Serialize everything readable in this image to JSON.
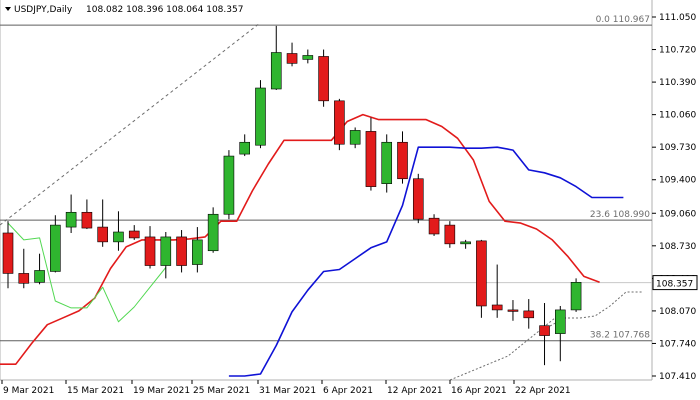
{
  "header": {
    "symbol_text": "USDJPY,Daily",
    "ohlc_text": "108.082 108.396 108.064 108.357"
  },
  "current_price_text": "108.357",
  "colors": {
    "bull": "#2fb52f",
    "bear": "#e21b1b",
    "red_line": "#e21b1b",
    "blue_line": "#0f12d6",
    "green_line": "#52d852",
    "grid_line": "#b2b2b2",
    "level_line": "#5e5e5e",
    "dashed": "#6d6d6d"
  },
  "chart_data": {
    "type": "candlestick",
    "y_axis_range": [
      107.41,
      111.05
    ],
    "y_ticks": [
      {
        "value": 111.05,
        "label": "111.050"
      },
      {
        "value": 110.72,
        "label": "110.720"
      },
      {
        "value": 110.39,
        "label": "110.390"
      },
      {
        "value": 110.06,
        "label": "110.060"
      },
      {
        "value": 109.73,
        "label": "109.730"
      },
      {
        "value": 109.4,
        "label": "109.400"
      },
      {
        "value": 109.06,
        "label": "109.060"
      },
      {
        "value": 108.73,
        "label": "108.730"
      },
      {
        "value": 108.4,
        "label": "108.400"
      },
      {
        "value": 108.07,
        "label": "108.070"
      },
      {
        "value": 107.74,
        "label": "107.740"
      },
      {
        "value": 107.41,
        "label": "107.410"
      }
    ],
    "x_ticks": [
      "9 Mar 2021",
      "15 Mar 2021",
      "19 Mar 2021",
      "25 Mar 2021",
      "31 Mar 2021",
      "6 Apr 2021",
      "12 Apr 2021",
      "16 Apr 2021",
      "22 Apr 2021"
    ],
    "fib_levels": [
      {
        "label": "0.0 110.967",
        "value": 110.967
      },
      {
        "label": "23.6 108.990",
        "value": 108.99
      },
      {
        "label": "38.2 107.768",
        "value": 107.768
      }
    ],
    "candles": [
      {
        "o": 108.86,
        "h": 108.98,
        "l": 108.3,
        "c": 108.45
      },
      {
        "o": 108.45,
        "h": 108.7,
        "l": 108.3,
        "c": 108.35
      },
      {
        "o": 108.36,
        "h": 108.65,
        "l": 108.34,
        "c": 108.48
      },
      {
        "o": 108.47,
        "h": 109.04,
        "l": 108.46,
        "c": 108.94
      },
      {
        "o": 108.92,
        "h": 109.25,
        "l": 108.86,
        "c": 109.07
      },
      {
        "o": 109.07,
        "h": 109.2,
        "l": 108.9,
        "c": 108.91
      },
      {
        "o": 108.92,
        "h": 109.2,
        "l": 108.72,
        "c": 108.77
      },
      {
        "o": 108.77,
        "h": 109.08,
        "l": 108.68,
        "c": 108.87
      },
      {
        "o": 108.88,
        "h": 108.94,
        "l": 108.79,
        "c": 108.81
      },
      {
        "o": 108.82,
        "h": 108.93,
        "l": 108.5,
        "c": 108.53
      },
      {
        "o": 108.53,
        "h": 108.87,
        "l": 108.4,
        "c": 108.82
      },
      {
        "o": 108.82,
        "h": 108.89,
        "l": 108.46,
        "c": 108.53
      },
      {
        "o": 108.54,
        "h": 108.92,
        "l": 108.46,
        "c": 108.79
      },
      {
        "o": 108.68,
        "h": 109.12,
        "l": 108.66,
        "c": 109.05
      },
      {
        "o": 109.05,
        "h": 109.7,
        "l": 109.0,
        "c": 109.64
      },
      {
        "o": 109.66,
        "h": 109.86,
        "l": 109.64,
        "c": 109.78
      },
      {
        "o": 109.75,
        "h": 110.41,
        "l": 109.72,
        "c": 110.33
      },
      {
        "o": 110.32,
        "h": 110.96,
        "l": 110.31,
        "c": 110.69
      },
      {
        "o": 110.68,
        "h": 110.79,
        "l": 110.55,
        "c": 110.58
      },
      {
        "o": 110.62,
        "h": 110.72,
        "l": 110.58,
        "c": 110.66
      },
      {
        "o": 110.65,
        "h": 110.72,
        "l": 110.14,
        "c": 110.2
      },
      {
        "o": 110.2,
        "h": 110.22,
        "l": 109.7,
        "c": 109.76
      },
      {
        "o": 109.76,
        "h": 109.93,
        "l": 109.72,
        "c": 109.9
      },
      {
        "o": 109.89,
        "h": 110.03,
        "l": 109.29,
        "c": 109.33
      },
      {
        "o": 109.36,
        "h": 109.86,
        "l": 109.27,
        "c": 109.78
      },
      {
        "o": 109.78,
        "h": 109.89,
        "l": 109.36,
        "c": 109.41
      },
      {
        "o": 109.41,
        "h": 109.46,
        "l": 108.96,
        "c": 109.0
      },
      {
        "o": 109.01,
        "h": 109.05,
        "l": 108.83,
        "c": 108.85
      },
      {
        "o": 108.94,
        "h": 108.98,
        "l": 108.71,
        "c": 108.75
      },
      {
        "o": 108.75,
        "h": 108.79,
        "l": 108.7,
        "c": 108.77
      },
      {
        "o": 108.78,
        "h": 108.79,
        "l": 108.0,
        "c": 108.12
      },
      {
        "o": 108.13,
        "h": 108.54,
        "l": 108.0,
        "c": 108.08
      },
      {
        "o": 108.08,
        "h": 108.18,
        "l": 107.97,
        "c": 108.07
      },
      {
        "o": 108.07,
        "h": 108.19,
        "l": 107.89,
        "c": 108.0
      },
      {
        "o": 107.92,
        "h": 108.15,
        "l": 107.52,
        "c": 107.82
      },
      {
        "o": 107.84,
        "h": 108.12,
        "l": 107.56,
        "c": 108.08
      },
      {
        "o": 108.08,
        "h": 108.4,
        "l": 108.06,
        "c": 108.36
      }
    ],
    "red_line": [
      107.53,
      107.53,
      107.74,
      107.93,
      108.0,
      108.07,
      108.2,
      108.5,
      108.72,
      108.79,
      108.79,
      108.79,
      108.8,
      108.82,
      108.98,
      108.98,
      109.29,
      109.56,
      109.8,
      109.8,
      109.8,
      109.8,
      109.99,
      110.06,
      110.01,
      110.01,
      110.01,
      110.01,
      109.94,
      109.82,
      109.6,
      109.18,
      108.98,
      108.96,
      108.9,
      108.79,
      108.62,
      108.42,
      108.36
    ],
    "blue_line": [
      107.41,
      107.41,
      107.43,
      107.72,
      108.06,
      108.28,
      108.47,
      108.49,
      108.6,
      108.71,
      108.77,
      109.14,
      109.73,
      109.73,
      109.73,
      109.72,
      109.72,
      109.73,
      109.7,
      109.5,
      109.47,
      109.42,
      109.33,
      109.22,
      109.22,
      109.22
    ],
    "green_line": [
      108.96,
      108.79,
      108.81,
      108.17,
      108.1,
      108.1,
      108.31,
      107.96,
      108.11,
      108.31,
      108.51
    ]
  }
}
